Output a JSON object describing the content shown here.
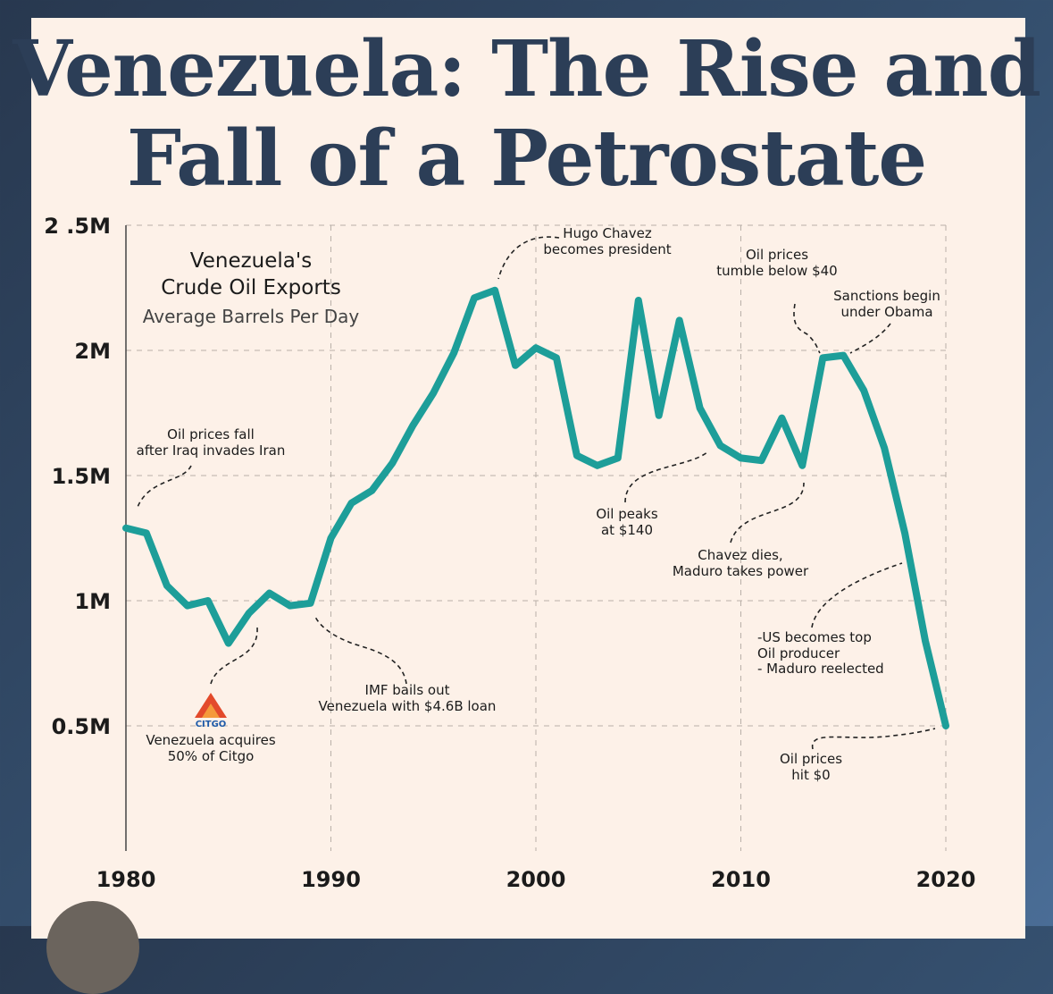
{
  "page": {
    "title_line1": "Venezuela: The Rise and",
    "title_line2": "Fall of a Petrostate",
    "colors": {
      "background": "#2c3e57",
      "card": "#fdf1e8",
      "line": "#1d9e99",
      "title": "#2c3e57"
    }
  },
  "legend": {
    "title_line1": "Venezuela's",
    "title_line2": "Crude Oil Exports",
    "subtitle": "Average Barrels Per Day"
  },
  "chart_data": {
    "type": "line",
    "title": "Venezuela's Crude Oil Exports",
    "subtitle": "Average Barrels Per Day",
    "xlabel": "",
    "ylabel": "",
    "xlim": [
      1980,
      2020
    ],
    "ylim": [
      0,
      2.5
    ],
    "x_ticks": [
      1980,
      1990,
      2000,
      2010,
      2020
    ],
    "y_ticks": [
      {
        "value": 0.5,
        "label": "0.5M"
      },
      {
        "value": 1.0,
        "label": "1M"
      },
      {
        "value": 1.5,
        "label": "1.5M"
      },
      {
        "value": 2.0,
        "label": "2M"
      },
      {
        "value": 2.5,
        "label": "2 .5M"
      }
    ],
    "grid": true,
    "series": [
      {
        "name": "Crude oil exports (million barrels per day)",
        "color": "#1d9e99",
        "x": [
          1980,
          1981,
          1982,
          1983,
          1984,
          1985,
          1986,
          1987,
          1988,
          1989,
          1990,
          1991,
          1992,
          1993,
          1994,
          1995,
          1996,
          1997,
          1998,
          1999,
          2000,
          2001,
          2002,
          2003,
          2004,
          2005,
          2006,
          2007,
          2008,
          2009,
          2010,
          2011,
          2012,
          2013,
          2014,
          2015,
          2016,
          2017,
          2018,
          2019,
          2020
        ],
        "y": [
          1.29,
          1.27,
          1.06,
          0.98,
          1.0,
          0.83,
          0.95,
          1.03,
          0.98,
          0.99,
          1.25,
          1.39,
          1.44,
          1.55,
          1.7,
          1.83,
          1.99,
          2.21,
          2.24,
          1.94,
          2.01,
          1.97,
          1.58,
          1.54,
          1.57,
          2.2,
          1.74,
          2.12,
          1.77,
          1.62,
          1.57,
          1.56,
          1.73,
          1.54,
          1.97,
          1.98,
          1.84,
          1.61,
          1.27,
          0.84,
          0.5
        ]
      }
    ],
    "annotations": [
      {
        "lines": [
          "Oil prices fall",
          "after Iraq invades Iran"
        ],
        "year": 1980
      },
      {
        "lines": [
          "Venezuela acquires",
          "50% of Citgo"
        ],
        "year": 1986
      },
      {
        "lines": [
          "IMF bails out",
          "Venezuela with $4.6B loan"
        ],
        "year": 1989
      },
      {
        "lines": [
          "Hugo Chavez",
          "becomes president"
        ],
        "year": 1998
      },
      {
        "lines": [
          "Oil peaks",
          "at $140"
        ],
        "year": 2008
      },
      {
        "lines": [
          "Oil prices",
          "tumble below $40"
        ],
        "year": 2014
      },
      {
        "lines": [
          "Sanctions begin",
          "under Obama"
        ],
        "year": 2015
      },
      {
        "lines": [
          "Chavez dies,",
          "Maduro takes power"
        ],
        "year": 2013
      },
      {
        "lines": [
          "-US becomes top",
          "Oil producer",
          "- Maduro reelected"
        ],
        "year": 2018
      },
      {
        "lines": [
          "Oil prices",
          "hit $0"
        ],
        "year": 2020
      }
    ],
    "logo_text": "CITGO"
  }
}
